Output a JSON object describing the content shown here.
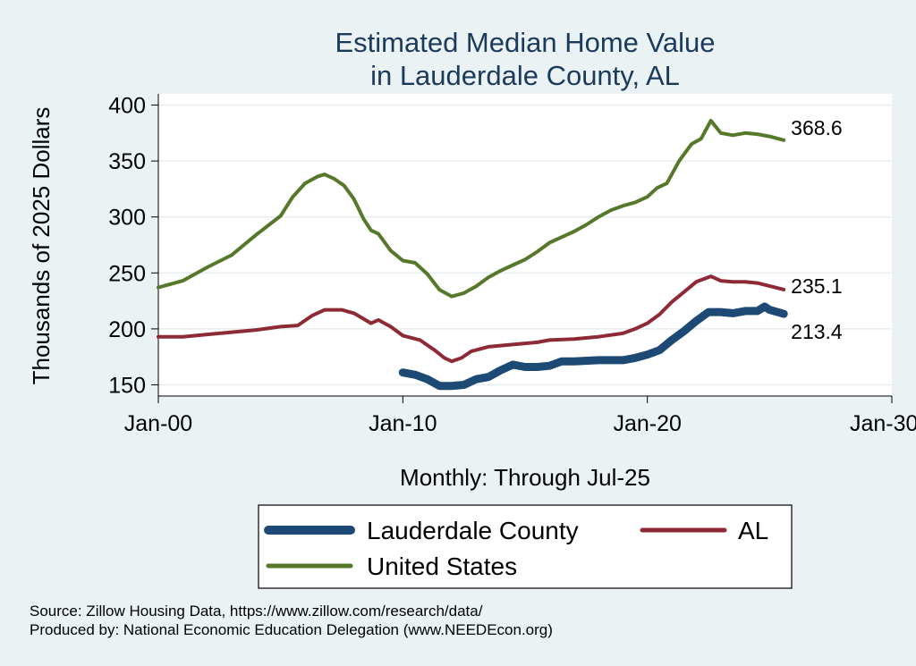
{
  "chart_data": {
    "type": "line",
    "title": [
      "Estimated Median Home Value",
      "in Lauderdale County, AL"
    ],
    "xlabel": "Monthly: Through Jul-25",
    "ylabel": "Thousands of 2025 Dollars",
    "xlim": [
      2000.0,
      2030.0
    ],
    "ylim": [
      140,
      410
    ],
    "x_ticks": [
      {
        "value": 2000,
        "label": "Jan-00"
      },
      {
        "value": 2010,
        "label": "Jan-10"
      },
      {
        "value": 2020,
        "label": "Jan-20"
      },
      {
        "value": 2030,
        "label": "Jan-30"
      }
    ],
    "y_ticks": [
      150,
      200,
      250,
      300,
      350,
      400
    ],
    "grid": true,
    "legend_position": "bottom",
    "series": [
      {
        "name": "Lauderdale County",
        "color": "#1c4a75",
        "end_label": "213.4",
        "points": [
          [
            2010.0,
            161
          ],
          [
            2010.5,
            159
          ],
          [
            2011.0,
            155
          ],
          [
            2011.5,
            149
          ],
          [
            2012.0,
            149
          ],
          [
            2012.5,
            150
          ],
          [
            2013.0,
            155
          ],
          [
            2013.5,
            157
          ],
          [
            2014.0,
            163
          ],
          [
            2014.5,
            168
          ],
          [
            2015.0,
            166
          ],
          [
            2015.5,
            166
          ],
          [
            2016.0,
            167
          ],
          [
            2016.5,
            171
          ],
          [
            2017.0,
            171
          ],
          [
            2018.0,
            172
          ],
          [
            2018.5,
            172
          ],
          [
            2019.0,
            172
          ],
          [
            2019.5,
            174
          ],
          [
            2020.0,
            177
          ],
          [
            2020.5,
            181
          ],
          [
            2021.0,
            190
          ],
          [
            2021.5,
            198
          ],
          [
            2022.0,
            207
          ],
          [
            2022.5,
            215
          ],
          [
            2023.0,
            215
          ],
          [
            2023.5,
            214
          ],
          [
            2024.0,
            216
          ],
          [
            2024.5,
            216
          ],
          [
            2024.8,
            220
          ],
          [
            2025.0,
            217
          ],
          [
            2025.58,
            213.4
          ]
        ]
      },
      {
        "name": "AL",
        "color": "#8e2a36",
        "end_label": "235.1",
        "points": [
          [
            2000.0,
            193
          ],
          [
            2001.0,
            193
          ],
          [
            2002.0,
            195
          ],
          [
            2003.0,
            197
          ],
          [
            2004.0,
            199
          ],
          [
            2005.0,
            202
          ],
          [
            2005.7,
            203
          ],
          [
            2006.3,
            212
          ],
          [
            2006.8,
            217
          ],
          [
            2007.5,
            217
          ],
          [
            2008.0,
            214
          ],
          [
            2008.7,
            205
          ],
          [
            2009.0,
            208
          ],
          [
            2009.5,
            202
          ],
          [
            2010.0,
            194
          ],
          [
            2010.7,
            190
          ],
          [
            2011.3,
            181
          ],
          [
            2011.7,
            174
          ],
          [
            2012.0,
            171
          ],
          [
            2012.4,
            174
          ],
          [
            2012.8,
            180
          ],
          [
            2013.5,
            184
          ],
          [
            2014.5,
            186
          ],
          [
            2015.5,
            188
          ],
          [
            2016.0,
            190
          ],
          [
            2017.0,
            191
          ],
          [
            2018.0,
            193
          ],
          [
            2019.0,
            196
          ],
          [
            2019.5,
            200
          ],
          [
            2020.0,
            205
          ],
          [
            2020.5,
            213
          ],
          [
            2021.0,
            224
          ],
          [
            2021.5,
            233
          ],
          [
            2022.0,
            242
          ],
          [
            2022.6,
            247
          ],
          [
            2023.0,
            243
          ],
          [
            2023.5,
            242
          ],
          [
            2024.0,
            242
          ],
          [
            2024.5,
            241
          ],
          [
            2025.58,
            235.1
          ]
        ]
      },
      {
        "name": "United States",
        "color": "#56782b",
        "end_label": "368.6",
        "points": [
          [
            2000.0,
            237
          ],
          [
            2001.0,
            243
          ],
          [
            2002.0,
            255
          ],
          [
            2003.0,
            266
          ],
          [
            2004.0,
            284
          ],
          [
            2005.0,
            301
          ],
          [
            2005.5,
            318
          ],
          [
            2006.0,
            330
          ],
          [
            2006.5,
            336
          ],
          [
            2006.8,
            338
          ],
          [
            2007.2,
            334
          ],
          [
            2007.6,
            328
          ],
          [
            2008.0,
            316
          ],
          [
            2008.4,
            298
          ],
          [
            2008.7,
            288
          ],
          [
            2009.0,
            285
          ],
          [
            2009.5,
            270
          ],
          [
            2010.0,
            261
          ],
          [
            2010.5,
            259
          ],
          [
            2011.0,
            249
          ],
          [
            2011.5,
            235
          ],
          [
            2012.0,
            229
          ],
          [
            2012.5,
            232
          ],
          [
            2013.0,
            238
          ],
          [
            2013.5,
            246
          ],
          [
            2014.0,
            252
          ],
          [
            2014.5,
            257
          ],
          [
            2015.0,
            262
          ],
          [
            2015.5,
            269
          ],
          [
            2016.0,
            277
          ],
          [
            2016.5,
            282
          ],
          [
            2017.0,
            287
          ],
          [
            2017.5,
            293
          ],
          [
            2018.0,
            300
          ],
          [
            2018.5,
            306
          ],
          [
            2019.0,
            310
          ],
          [
            2019.5,
            313
          ],
          [
            2020.0,
            318
          ],
          [
            2020.4,
            326
          ],
          [
            2020.8,
            330
          ],
          [
            2021.3,
            350
          ],
          [
            2021.8,
            365
          ],
          [
            2022.2,
            370
          ],
          [
            2022.6,
            386
          ],
          [
            2023.0,
            375
          ],
          [
            2023.5,
            373
          ],
          [
            2024.0,
            375
          ],
          [
            2024.5,
            374
          ],
          [
            2025.0,
            372
          ],
          [
            2025.58,
            368.6
          ]
        ]
      }
    ]
  },
  "notes": [
    "Source: Zillow Housing Data, https://www.zillow.com/research/data/",
    "Produced by: National Economic Education Delegation (www.NEEDEcon.org)"
  ]
}
